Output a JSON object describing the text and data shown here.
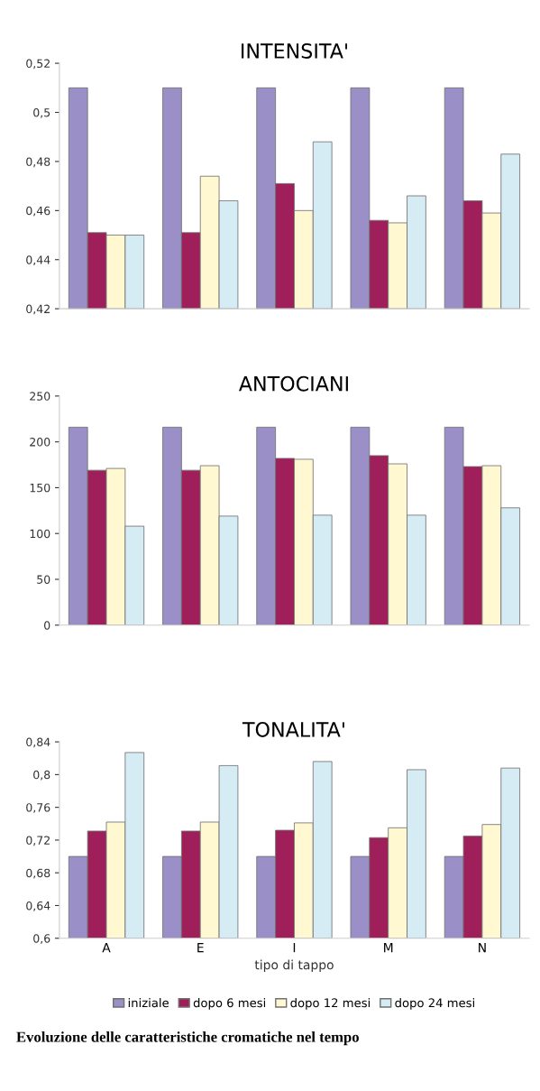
{
  "chart_data": [
    {
      "type": "bar",
      "title": "INTENSITA'",
      "categories": [
        null,
        null,
        null,
        null,
        null
      ],
      "ylim": [
        0.42,
        0.52
      ],
      "yticks": [
        {
          "value": 0.42,
          "label": "0,42"
        },
        {
          "value": 0.44,
          "label": "0,44"
        },
        {
          "value": 0.46,
          "label": "0,46"
        },
        {
          "value": 0.48,
          "label": "0,48"
        },
        {
          "value": 0.5,
          "label": "0,5"
        },
        {
          "value": 0.52,
          "label": "0,52"
        }
      ],
      "tick_labels": "y",
      "grid": false,
      "series": [
        {
          "color": "#9b8fc8",
          "values": [
            0.51,
            0.51,
            0.51,
            0.51,
            0.51
          ]
        },
        {
          "color": "#9e1f5a",
          "values": [
            0.451,
            0.451,
            0.471,
            0.456,
            0.464
          ]
        },
        {
          "color": "#fff8d0",
          "values": [
            0.45,
            0.474,
            0.46,
            0.455,
            0.459
          ]
        },
        {
          "color": "#d5ecf5",
          "values": [
            0.45,
            0.464,
            0.488,
            0.466,
            0.483
          ]
        }
      ]
    },
    {
      "type": "bar",
      "title": "ANTOCIANI",
      "categories": [
        null,
        null,
        null,
        null,
        null
      ],
      "ylim": [
        0,
        250
      ],
      "yticks": [
        0,
        50,
        100,
        150,
        200,
        250
      ],
      "tick_labels": "y",
      "grid": false,
      "series": [
        {
          "color": "#9b8fc8",
          "values": [
            216,
            216,
            216,
            216,
            216
          ]
        },
        {
          "color": "#9e1f5a",
          "values": [
            169,
            169,
            182,
            185,
            173
          ]
        },
        {
          "color": "#fff8d0",
          "values": [
            171,
            174,
            181,
            176,
            174
          ]
        },
        {
          "color": "#d5ecf5",
          "values": [
            108,
            119,
            120,
            120,
            128
          ]
        }
      ]
    },
    {
      "type": "bar",
      "title": "TONALITA'",
      "xlabel": "tipo di tappo",
      "categories": [
        "A",
        "E",
        "I",
        "M",
        "N"
      ],
      "ylim": [
        0.6,
        0.84
      ],
      "yticks": [
        {
          "value": 0.6,
          "label": "0,6"
        },
        {
          "value": 0.64,
          "label": "0,64"
        },
        {
          "value": 0.68,
          "label": "0,68"
        },
        {
          "value": 0.72,
          "label": "0,72"
        },
        {
          "value": 0.76,
          "label": "0,76"
        },
        {
          "value": 0.8,
          "label": "0,8"
        },
        {
          "value": 0.84,
          "label": "0,84"
        }
      ],
      "grid": false,
      "legend": "bottom",
      "annotations": [
        "Evoluzione delle caratteristiche cromatiche nel tempo"
      ],
      "series": [
        {
          "name": "iniziale",
          "color": "#9b8fc8",
          "values": [
            0.7,
            0.7,
            0.7,
            0.7,
            0.7
          ]
        },
        {
          "name": "dopo 6 mesi",
          "color": "#9e1f5a",
          "values": [
            0.731,
            0.731,
            0.732,
            0.723,
            0.725
          ]
        },
        {
          "name": "dopo 12 mesi",
          "color": "#fff8d0",
          "values": [
            0.742,
            0.742,
            0.741,
            0.735,
            0.739
          ]
        },
        {
          "name": "dopo 24 mesi",
          "color": "#d5ecf5",
          "values": [
            0.827,
            0.811,
            0.816,
            0.806,
            0.808
          ]
        }
      ]
    }
  ]
}
